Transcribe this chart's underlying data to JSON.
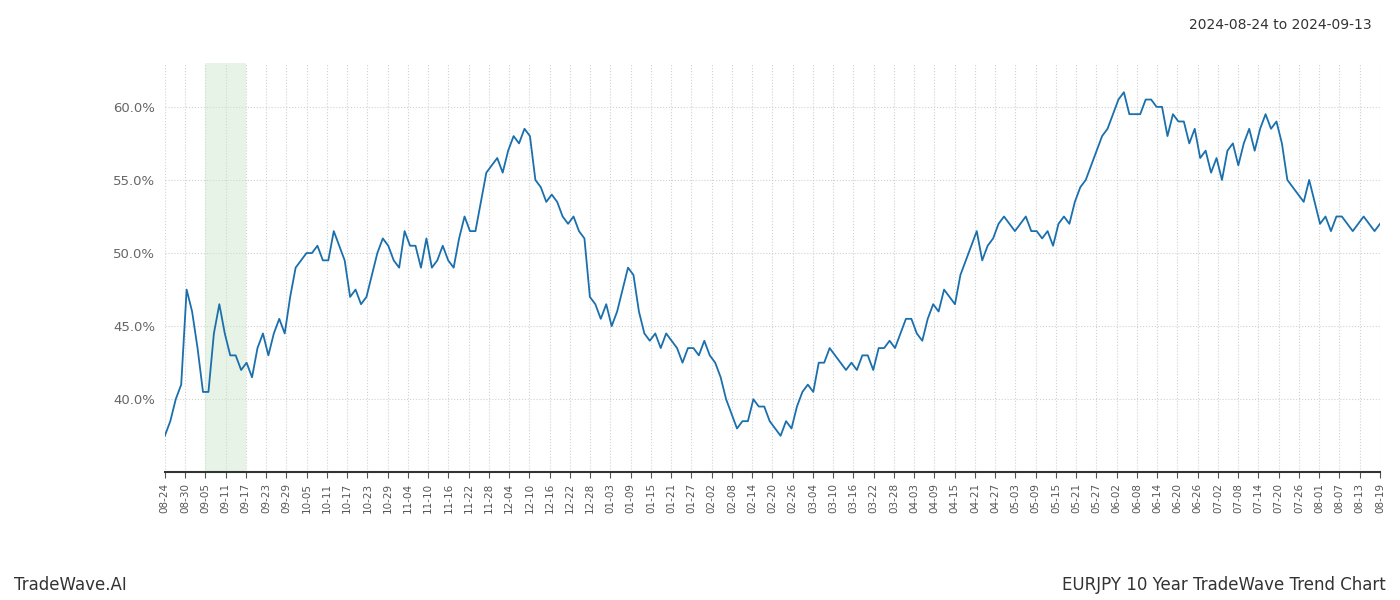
{
  "title_top_right": "2024-08-24 to 2024-09-13",
  "title_bottom_right": "EURJPY 10 Year TradeWave Trend Chart",
  "title_bottom_left": "TradeWave.AI",
  "line_color": "#1a6fad",
  "line_width": 1.3,
  "background_color": "#ffffff",
  "grid_color": "#cccccc",
  "highlight_color": "#c8e6c9",
  "highlight_alpha": 0.45,
  "ylim": [
    35.0,
    63.0
  ],
  "yticks": [
    40.0,
    45.0,
    50.0,
    55.0,
    60.0
  ],
  "x_tick_labels": [
    "08-24",
    "08-30",
    "09-05",
    "09-11",
    "09-17",
    "09-23",
    "09-29",
    "10-05",
    "10-11",
    "10-17",
    "10-23",
    "10-29",
    "11-04",
    "11-10",
    "11-16",
    "11-22",
    "11-28",
    "12-04",
    "12-10",
    "12-16",
    "12-22",
    "12-28",
    "01-03",
    "01-09",
    "01-15",
    "01-21",
    "01-27",
    "02-02",
    "02-08",
    "02-14",
    "02-20",
    "02-26",
    "03-04",
    "03-10",
    "03-16",
    "03-22",
    "03-28",
    "04-03",
    "04-09",
    "04-15",
    "04-21",
    "04-27",
    "05-03",
    "05-09",
    "05-15",
    "05-21",
    "05-27",
    "06-02",
    "06-08",
    "06-14",
    "06-20",
    "06-26",
    "07-02",
    "07-08",
    "07-14",
    "07-20",
    "07-26",
    "08-01",
    "08-07",
    "08-13",
    "08-19"
  ],
  "highlight_x_start_label": "09-05",
  "highlight_x_end_label": "09-17",
  "y_values": [
    37.5,
    38.5,
    40.0,
    41.0,
    47.5,
    46.0,
    43.5,
    40.5,
    40.5,
    44.5,
    46.5,
    44.5,
    43.0,
    43.0,
    42.0,
    42.5,
    41.5,
    43.5,
    44.5,
    43.0,
    44.5,
    45.5,
    44.5,
    47.0,
    49.0,
    49.5,
    50.0,
    50.0,
    50.5,
    49.5,
    49.5,
    51.5,
    50.5,
    49.5,
    47.0,
    47.5,
    46.5,
    47.0,
    48.5,
    50.0,
    51.0,
    50.5,
    49.5,
    49.0,
    51.5,
    50.5,
    50.5,
    49.0,
    51.0,
    49.0,
    49.5,
    50.5,
    49.5,
    49.0,
    51.0,
    52.5,
    51.5,
    51.5,
    53.5,
    55.5,
    56.0,
    56.5,
    55.5,
    57.0,
    58.0,
    57.5,
    58.5,
    58.0,
    55.0,
    54.5,
    53.5,
    54.0,
    53.5,
    52.5,
    52.0,
    52.5,
    51.5,
    51.0,
    47.0,
    46.5,
    45.5,
    46.5,
    45.0,
    46.0,
    47.5,
    49.0,
    48.5,
    46.0,
    44.5,
    44.0,
    44.5,
    43.5,
    44.5,
    44.0,
    43.5,
    42.5,
    43.5,
    43.5,
    43.0,
    44.0,
    43.0,
    42.5,
    41.5,
    40.0,
    39.0,
    38.0,
    38.5,
    38.5,
    40.0,
    39.5,
    39.5,
    38.5,
    38.0,
    37.5,
    38.5,
    38.0,
    39.5,
    40.5,
    41.0,
    40.5,
    42.5,
    42.5,
    43.5,
    43.0,
    42.5,
    42.0,
    42.5,
    42.0,
    43.0,
    43.0,
    42.0,
    43.5,
    43.5,
    44.0,
    43.5,
    44.5,
    45.5,
    45.5,
    44.5,
    44.0,
    45.5,
    46.5,
    46.0,
    47.5,
    47.0,
    46.5,
    48.5,
    49.5,
    50.5,
    51.5,
    49.5,
    50.5,
    51.0,
    52.0,
    52.5,
    52.0,
    51.5,
    52.0,
    52.5,
    51.5,
    51.5,
    51.0,
    51.5,
    50.5,
    52.0,
    52.5,
    52.0,
    53.5,
    54.5,
    55.0,
    56.0,
    57.0,
    58.0,
    58.5,
    59.5,
    60.5,
    61.0,
    59.5,
    59.5,
    59.5,
    60.5,
    60.5,
    60.0,
    60.0,
    58.0,
    59.5,
    59.0,
    59.0,
    57.5,
    58.5,
    56.5,
    57.0,
    55.5,
    56.5,
    55.0,
    57.0,
    57.5,
    56.0,
    57.5,
    58.5,
    57.0,
    58.5,
    59.5,
    58.5,
    59.0,
    57.5,
    55.0,
    54.5,
    54.0,
    53.5,
    55.0,
    53.5,
    52.0,
    52.5,
    51.5,
    52.5,
    52.5,
    52.0,
    51.5,
    52.0,
    52.5,
    52.0,
    51.5,
    52.0
  ]
}
